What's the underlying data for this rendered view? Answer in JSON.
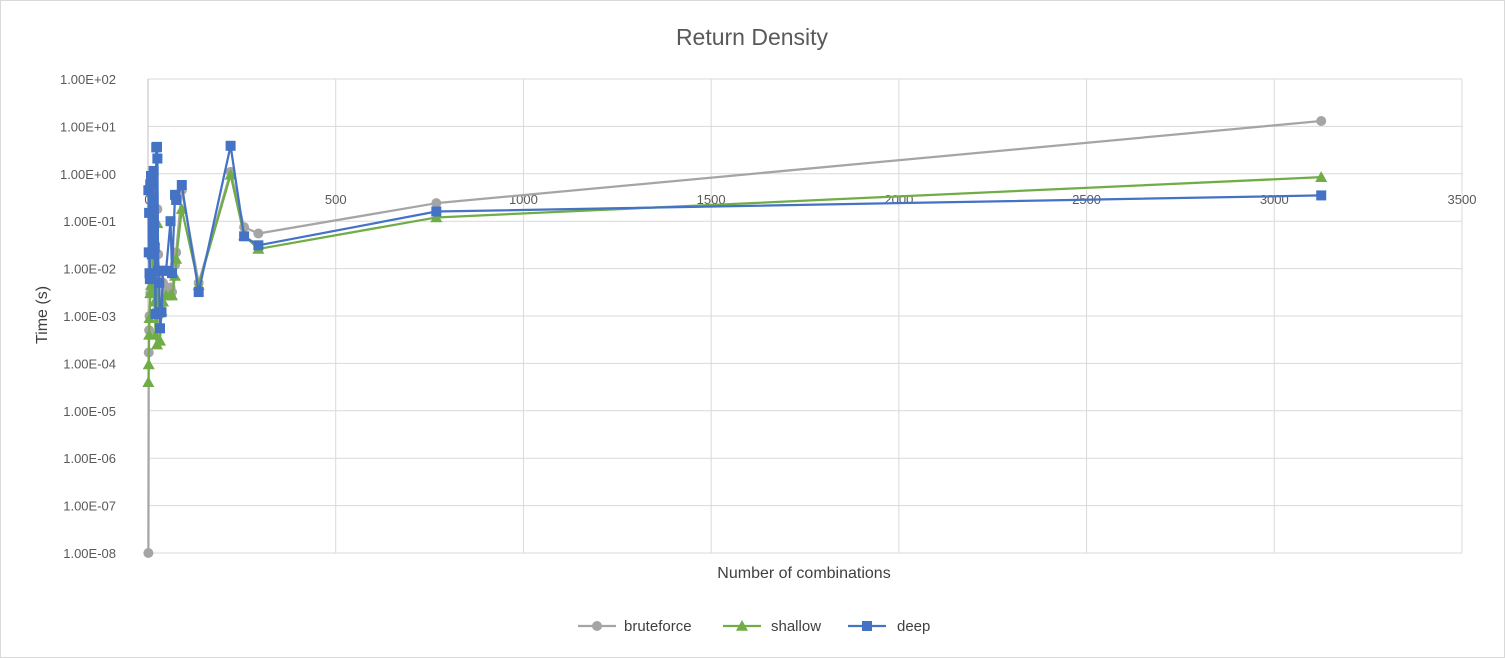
{
  "chart_data": {
    "type": "line",
    "title": "Return Density",
    "xlabel": "Number of combinations",
    "ylabel": "Time (s)",
    "xlim": [
      0,
      3500
    ],
    "ylim": [
      1e-08,
      100
    ],
    "yscale": "log",
    "x_ticks": [
      "0",
      "500",
      "1000",
      "1500",
      "2000",
      "2500",
      "3000",
      "3500"
    ],
    "y_ticks": [
      "1.00E-08",
      "1.00E-07",
      "1.00E-06",
      "1.00E-05",
      "1.00E-04",
      "1.00E-03",
      "1.00E-02",
      "1.00E-01",
      "1.00E+00",
      "1.00E+01",
      "1.00E+02"
    ],
    "grid": true,
    "legend_position": "bottom",
    "series": [
      {
        "name": "bruteforce",
        "color": "#a5a5a5",
        "marker": "circle",
        "points": [
          [
            1,
            1e-08
          ],
          [
            2,
            0.00017
          ],
          [
            3,
            0.0005
          ],
          [
            4,
            0.001
          ],
          [
            6,
            0.003
          ],
          [
            8,
            0.006
          ],
          [
            10,
            0.02
          ],
          [
            12,
            0.015
          ],
          [
            15,
            0.3
          ],
          [
            16,
            0.06
          ],
          [
            18,
            0.004
          ],
          [
            20,
            0.0012
          ],
          [
            24,
            0.002
          ],
          [
            25,
            0.18
          ],
          [
            27,
            0.02
          ],
          [
            30,
            0.006
          ],
          [
            32,
            0.0011
          ],
          [
            36,
            0.0018
          ],
          [
            40,
            0.005
          ],
          [
            48,
            0.0035
          ],
          [
            60,
            0.004
          ],
          [
            64,
            0.0032
          ],
          [
            72,
            0.012
          ],
          [
            75,
            0.022
          ],
          [
            90,
            0.45
          ],
          [
            135,
            0.005
          ],
          [
            220,
            1.1
          ],
          [
            256,
            0.075
          ],
          [
            294,
            0.055
          ],
          [
            768,
            0.24
          ],
          [
            3125,
            13
          ]
        ]
      },
      {
        "name": "shallow",
        "color": "#70ad47",
        "marker": "triangle",
        "points": [
          [
            1,
            4e-05
          ],
          [
            2,
            9.5e-05
          ],
          [
            3,
            0.0004
          ],
          [
            4,
            0.0009
          ],
          [
            6,
            0.003
          ],
          [
            8,
            0.0045
          ],
          [
            10,
            0.008
          ],
          [
            12,
            0.003
          ],
          [
            15,
            0.12
          ],
          [
            16,
            0.04
          ],
          [
            18,
            0.002
          ],
          [
            20,
            0.0004
          ],
          [
            24,
            0.00025
          ],
          [
            25,
            0.09
          ],
          [
            27,
            0.01
          ],
          [
            30,
            0.002
          ],
          [
            32,
            0.0003
          ],
          [
            36,
            0.0013
          ],
          [
            40,
            0.002
          ],
          [
            48,
            0.0027
          ],
          [
            60,
            0.0028
          ],
          [
            64,
            0.0027
          ],
          [
            72,
            0.007
          ],
          [
            75,
            0.016
          ],
          [
            90,
            0.18
          ],
          [
            135,
            0.0045
          ],
          [
            220,
            0.95
          ],
          [
            256,
            0.05
          ],
          [
            294,
            0.026
          ],
          [
            768,
            0.12
          ],
          [
            3125,
            0.85
          ]
        ]
      },
      {
        "name": "deep",
        "color": "#4472c4",
        "marker": "square",
        "points": [
          [
            1,
            0.45
          ],
          [
            2,
            0.022
          ],
          [
            3,
            0.15
          ],
          [
            4,
            0.008
          ],
          [
            5,
            0.006
          ],
          [
            6,
            0.6
          ],
          [
            8,
            0.9
          ],
          [
            10,
            0.02
          ],
          [
            12,
            0.05
          ],
          [
            15,
            1.15
          ],
          [
            16,
            0.035
          ],
          [
            18,
            0.028
          ],
          [
            20,
            0.0011
          ],
          [
            22,
            3.6
          ],
          [
            24,
            3.7
          ],
          [
            25,
            2.1
          ],
          [
            27,
            0.009
          ],
          [
            30,
            0.005
          ],
          [
            32,
            0.00055
          ],
          [
            36,
            0.0012
          ],
          [
            40,
            0.009
          ],
          [
            48,
            0.009
          ],
          [
            60,
            0.1
          ],
          [
            64,
            0.008
          ],
          [
            72,
            0.36
          ],
          [
            75,
            0.28
          ],
          [
            90,
            0.58
          ],
          [
            135,
            0.0032
          ],
          [
            220,
            3.9
          ],
          [
            256,
            0.048
          ],
          [
            294,
            0.031
          ],
          [
            768,
            0.16
          ],
          [
            3125,
            0.35
          ]
        ]
      }
    ]
  }
}
